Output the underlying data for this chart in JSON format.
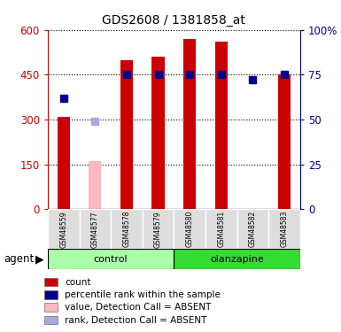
{
  "title": "GDS2608 / 1381858_at",
  "samples": [
    "GSM48559",
    "GSM48577",
    "GSM48578",
    "GSM48579",
    "GSM48580",
    "GSM48581",
    "GSM48582",
    "GSM48583"
  ],
  "absent_mask": [
    false,
    true,
    false,
    false,
    false,
    false,
    false,
    false
  ],
  "red_values": [
    310,
    0,
    500,
    510,
    570,
    560,
    0,
    450
  ],
  "pink_values": [
    0,
    160,
    0,
    0,
    0,
    0,
    0,
    0
  ],
  "blue_values_pct": [
    62,
    0,
    75,
    75,
    75,
    75,
    72,
    75
  ],
  "lb_values_pct": [
    0,
    49,
    0,
    0,
    0,
    0,
    0,
    0
  ],
  "ylim_left": [
    0,
    600
  ],
  "ylim_right": [
    0,
    100
  ],
  "yticks_left": [
    0,
    150,
    300,
    450,
    600
  ],
  "ytick_labels_left": [
    "0",
    "150",
    "300",
    "450",
    "600"
  ],
  "yticks_right": [
    0,
    25,
    50,
    75,
    100
  ],
  "ytick_labels_right": [
    "0",
    "25",
    "50",
    "75",
    "100%"
  ],
  "bar_width": 0.4,
  "red_color": "#CC0000",
  "pink_color": "#FFB6C1",
  "blue_color": "#00008B",
  "lb_color": "#AAAADD",
  "ctrl_color_light": "#CCFFCC",
  "ctrl_color_dark": "#44DD44",
  "olanz_color_light": "#CCFFCC",
  "olanz_color_dark": "#22CC22",
  "control_label": "control",
  "olanzapine_label": "olanzapine",
  "agent_label": "agent",
  "legend_labels": [
    "count",
    "percentile rank within the sample",
    "value, Detection Call = ABSENT",
    "rank, Detection Call = ABSENT"
  ],
  "legend_colors": [
    "#CC0000",
    "#00008B",
    "#FFB6C1",
    "#AAAADD"
  ]
}
